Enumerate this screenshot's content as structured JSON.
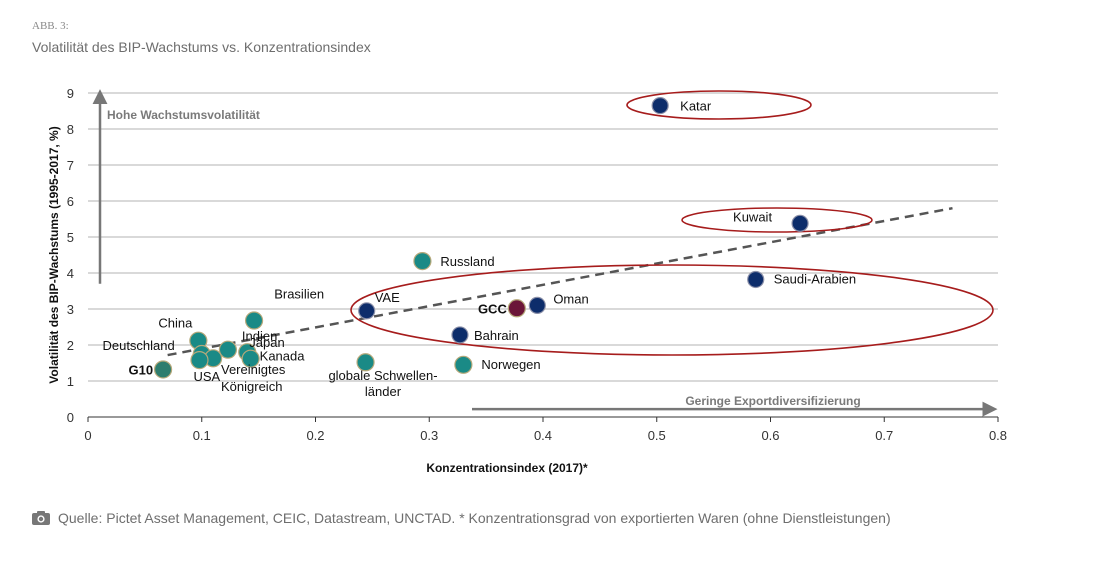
{
  "figure": {
    "label": "ABB. 3:",
    "title": "Volatilität des BIP-Wachstums vs. Konzentrationsindex",
    "source": "Quelle: Pictet Asset Management, CEIC, Datastream, UNCTAD. * Konzentrationsgrad von exportierten Waren (ohne Dienstleistungen)"
  },
  "chart_data": {
    "type": "scatter",
    "xlabel": "Konzentrationsindex (2017)*",
    "ylabel": "Volatilität des BIP-Wachstums  (1995-2017, %)",
    "xlim": [
      0,
      0.8
    ],
    "ylim": [
      0,
      9
    ],
    "xticks": [
      "0",
      "0.1",
      "0.2",
      "0.3",
      "0.4",
      "0.5",
      "0.6",
      "0.7",
      "0.8"
    ],
    "yticks": [
      "0",
      "1",
      "2",
      "3",
      "4",
      "5",
      "6",
      "7",
      "8",
      "9"
    ],
    "grid": "horizontal",
    "annotations": {
      "y_arrow": "Hohe Wachstumsvolatilität",
      "x_arrow": "Geringe Exportdiversifizierung"
    },
    "colors": {
      "other": "#1a8a86",
      "gcc": "#0d2d6b",
      "gcc_avg": "#6b1638",
      "g10": "#2e7d6e",
      "ellipse": "#a61c1c",
      "trend": "#555555"
    },
    "trendline": {
      "x": [
        0.07,
        0.76
      ],
      "y": [
        1.72,
        5.8
      ]
    },
    "points": [
      {
        "label": "Katar",
        "x": 0.503,
        "y": 8.65,
        "group": "gcc"
      },
      {
        "label": "Kuwait",
        "x": 0.626,
        "y": 5.38,
        "group": "gcc"
      },
      {
        "label": "Saudi-Arabien",
        "x": 0.587,
        "y": 3.82,
        "group": "gcc"
      },
      {
        "label": "Oman",
        "x": 0.395,
        "y": 3.1,
        "group": "gcc"
      },
      {
        "label": "Bahrain",
        "x": 0.327,
        "y": 2.28,
        "group": "gcc"
      },
      {
        "label": "VAE",
        "x": 0.245,
        "y": 2.95,
        "group": "gcc"
      },
      {
        "label": "GCC",
        "x": 0.377,
        "y": 3.02,
        "group": "gcc_avg"
      },
      {
        "label": "Russland",
        "x": 0.294,
        "y": 4.33,
        "group": "other"
      },
      {
        "label": "Norwegen",
        "x": 0.33,
        "y": 1.45,
        "group": "other"
      },
      {
        "label": "globale Schwellen-länder",
        "x": 0.244,
        "y": 1.52,
        "group": "other"
      },
      {
        "label": "Brasilien",
        "x": 0.146,
        "y": 2.68,
        "group": "other"
      },
      {
        "label": "China",
        "x": 0.097,
        "y": 2.12,
        "group": "other"
      },
      {
        "label": "Indien",
        "x": 0.123,
        "y": 1.87,
        "group": "other"
      },
      {
        "label": "Japan",
        "x": 0.14,
        "y": 1.8,
        "group": "other"
      },
      {
        "label": "Kanada",
        "x": 0.143,
        "y": 1.62,
        "group": "other"
      },
      {
        "label": "Deutschland",
        "x": 0.1,
        "y": 1.75,
        "group": "other"
      },
      {
        "label": "Vereinigtes Königreich",
        "x": 0.11,
        "y": 1.63,
        "group": "other"
      },
      {
        "label": "USA",
        "x": 0.098,
        "y": 1.58,
        "group": "other"
      },
      {
        "label": "G10",
        "x": 0.066,
        "y": 1.32,
        "group": "g10"
      }
    ]
  }
}
